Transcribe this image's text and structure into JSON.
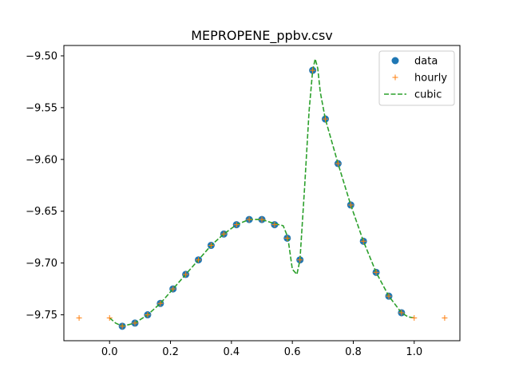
{
  "chart_data": {
    "type": "line",
    "title": "MEPROPENE_ppbv.csv",
    "xlabel": "",
    "ylabel": "",
    "xlim": [
      -0.15,
      1.15
    ],
    "ylim": [
      -9.775,
      -9.49
    ],
    "x_ticks": [
      0.0,
      0.2,
      0.4,
      0.6,
      0.8,
      1.0
    ],
    "x_tick_labels": [
      "0.0",
      "0.2",
      "0.4",
      "0.6",
      "0.8",
      "1.0"
    ],
    "y_ticks": [
      -9.75,
      -9.7,
      -9.65,
      -9.6,
      -9.55,
      -9.5
    ],
    "y_tick_labels": [
      "−9.75",
      "−9.70",
      "−9.65",
      "−9.60",
      "−9.55",
      "−9.50"
    ],
    "grid": false,
    "legend": "top-right",
    "colors": {
      "data": "#1f77b4",
      "hourly": "#ff7f0e",
      "cubic": "#2ca02c"
    },
    "series": [
      {
        "name": "data",
        "style": "markers-circle",
        "x": [
          0.0417,
          0.0833,
          0.125,
          0.1667,
          0.2083,
          0.25,
          0.2917,
          0.3333,
          0.375,
          0.4167,
          0.4583,
          0.5,
          0.5417,
          0.5833,
          0.625,
          0.6667,
          0.7083,
          0.75,
          0.7917,
          0.8333,
          0.875,
          0.9167,
          0.9583
        ],
        "y": [
          -9.761,
          -9.758,
          -9.75,
          -9.739,
          -9.725,
          -9.711,
          -9.697,
          -9.683,
          -9.672,
          -9.663,
          -9.658,
          -9.658,
          -9.663,
          -9.676,
          -9.697,
          -9.514,
          -9.561,
          -9.604,
          -9.644,
          -9.679,
          -9.709,
          -9.732,
          -9.748
        ]
      },
      {
        "name": "hourly",
        "style": "markers-plus",
        "x": [
          -0.1,
          0.0,
          0.0417,
          0.0833,
          0.125,
          0.1667,
          0.2083,
          0.25,
          0.2917,
          0.3333,
          0.375,
          0.4167,
          0.4583,
          0.5,
          0.5417,
          0.5833,
          0.625,
          0.6667,
          0.7083,
          0.75,
          0.7917,
          0.8333,
          0.875,
          0.9167,
          0.9583,
          1.0,
          1.1
        ],
        "y": [
          -9.753,
          -9.753,
          -9.761,
          -9.758,
          -9.75,
          -9.739,
          -9.725,
          -9.711,
          -9.697,
          -9.683,
          -9.672,
          -9.663,
          -9.658,
          -9.658,
          -9.663,
          -9.676,
          -9.697,
          -9.514,
          -9.561,
          -9.604,
          -9.644,
          -9.679,
          -9.709,
          -9.732,
          -9.748,
          -9.753,
          -9.753
        ]
      },
      {
        "name": "cubic",
        "style": "dashed-line",
        "x": [
          0.0,
          0.02,
          0.0417,
          0.0833,
          0.125,
          0.1667,
          0.2083,
          0.25,
          0.2917,
          0.3333,
          0.375,
          0.4167,
          0.4583,
          0.5,
          0.5417,
          0.57,
          0.585,
          0.6,
          0.615,
          0.625,
          0.64,
          0.655,
          0.6667,
          0.675,
          0.6833,
          0.6917,
          0.7083,
          0.75,
          0.7917,
          0.8333,
          0.875,
          0.9167,
          0.9583,
          0.98,
          1.0
        ],
        "y": [
          -9.753,
          -9.758,
          -9.761,
          -9.758,
          -9.75,
          -9.739,
          -9.725,
          -9.711,
          -9.697,
          -9.683,
          -9.672,
          -9.663,
          -9.658,
          -9.658,
          -9.662,
          -9.664,
          -9.675,
          -9.706,
          -9.711,
          -9.697,
          -9.628,
          -9.553,
          -9.514,
          -9.503,
          -9.512,
          -9.535,
          -9.561,
          -9.604,
          -9.644,
          -9.679,
          -9.709,
          -9.732,
          -9.748,
          -9.752,
          -9.753
        ]
      }
    ]
  }
}
